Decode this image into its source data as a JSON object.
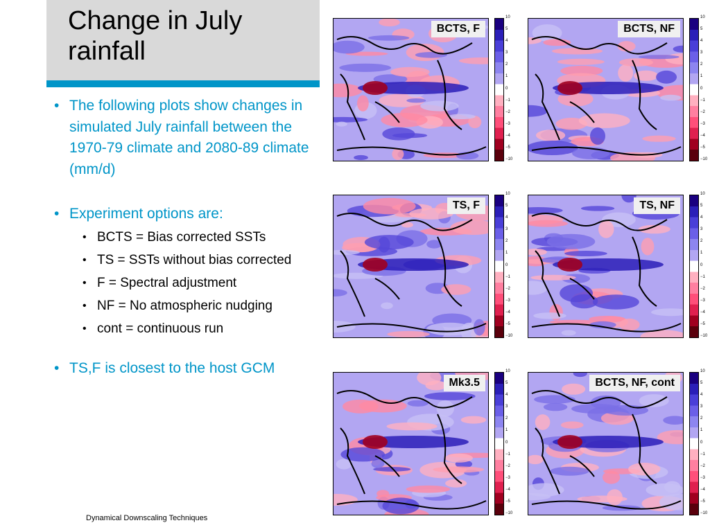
{
  "title": "Change in July rainfall",
  "bullets": [
    "The following plots show changes in simulated July rainfall between the 1970-79 climate and 2080-89 climate (mm/d)",
    "Experiment options are:",
    "TS,F is closest to the host GCM"
  ],
  "sub_bullets": [
    "BCTS = Bias corrected SSTs",
    "TS = SSTs without bias corrected",
    "F = Spectral adjustment",
    "NF = No atmospheric nudging",
    "cont = continuous run"
  ],
  "bullet_glyph": "•",
  "footer": "Dynamical Downscaling Techniques",
  "panels": [
    {
      "label": "BCTS, F"
    },
    {
      "label": "BCTS, NF"
    },
    {
      "label": "TS, F"
    },
    {
      "label": "TS, NF"
    },
    {
      "label": "Mk3.5"
    },
    {
      "label": "BCTS, NF, cont"
    }
  ],
  "colorbar_ticks": [
    "10",
    "5",
    "4",
    "3",
    "2",
    "1",
    "0",
    "−1",
    "−2",
    "−3",
    "−4",
    "−5",
    "−10"
  ],
  "colorbar_colors": [
    "#1a0080",
    "#2b1fb8",
    "#4a3fd8",
    "#6b5fe8",
    "#8d85f0",
    "#b2a6f2",
    "#ffffff",
    "#ffb0c0",
    "#ff7fa0",
    "#ff4f7a",
    "#e0204f",
    "#a00020",
    "#5a000c"
  ],
  "colors": {
    "accent": "#0095c8",
    "title_bg": "#d9d9d9",
    "panel_bg": "#b2a6f2"
  }
}
